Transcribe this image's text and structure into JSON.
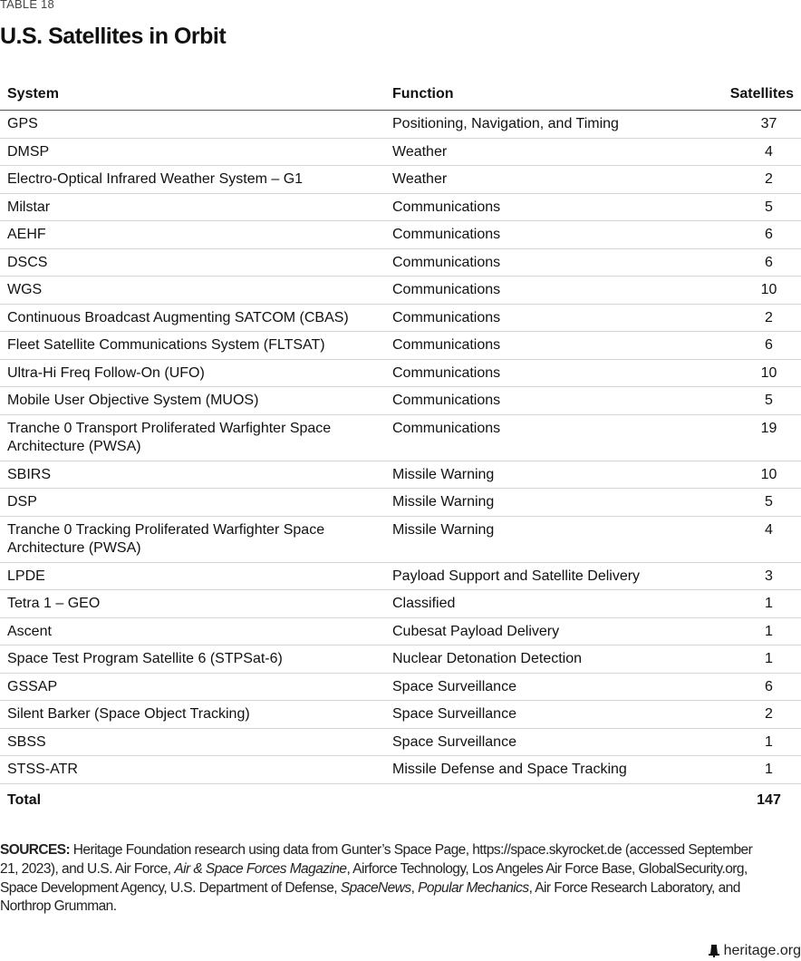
{
  "table_label": "TABLE 18",
  "title": "U.S. Satellites in Orbit",
  "columns": [
    "System",
    "Function",
    "Satellites"
  ],
  "rows": [
    {
      "system": "GPS",
      "function": "Positioning, Navigation, and Timing",
      "satellites": "37"
    },
    {
      "system": "DMSP",
      "function": "Weather",
      "satellites": "4"
    },
    {
      "system": "Electro-Optical Infrared Weather System – G1",
      "function": "Weather",
      "satellites": "2"
    },
    {
      "system": "Milstar",
      "function": "Communications",
      "satellites": "5"
    },
    {
      "system": "AEHF",
      "function": "Communications",
      "satellites": "6"
    },
    {
      "system": "DSCS",
      "function": "Communications",
      "satellites": "6"
    },
    {
      "system": "WGS",
      "function": "Communications",
      "satellites": "10"
    },
    {
      "system": "Continuous Broadcast Augmenting SATCOM (CBAS)",
      "function": "Communications",
      "satellites": "2"
    },
    {
      "system": "Fleet Satellite Communications System (FLTSAT)",
      "function": "Communications",
      "satellites": "6"
    },
    {
      "system": "Ultra-Hi Freq Follow-On (UFO)",
      "function": "Communications",
      "satellites": "10"
    },
    {
      "system": "Mobile User Objective System (MUOS)",
      "function": "Communications",
      "satellites": "5"
    },
    {
      "system": "Tranche 0 Transport Proliferated Warfighter Space Architecture (PWSA)",
      "function": "Communications",
      "satellites": "19"
    },
    {
      "system": "SBIRS",
      "function": "Missile Warning",
      "satellites": "10"
    },
    {
      "system": "DSP",
      "function": "Missile Warning",
      "satellites": "5"
    },
    {
      "system": "Tranche 0 Tracking Proliferated Warfighter Space Architecture (PWSA)",
      "function": "Missile Warning",
      "satellites": "4"
    },
    {
      "system": "LPDE",
      "function": "Payload Support and Satellite Delivery",
      "satellites": "3"
    },
    {
      "system": "Tetra 1 – GEO",
      "function": "Classified",
      "satellites": "1"
    },
    {
      "system": "Ascent",
      "function": "Cubesat Payload Delivery",
      "satellites": "1"
    },
    {
      "system": "Space Test Program Satellite 6 (STPSat-6)",
      "function": "Nuclear Detonation Detection",
      "satellites": "1"
    },
    {
      "system": "GSSAP",
      "function": "Space Surveillance",
      "satellites": "6"
    },
    {
      "system": "Silent Barker (Space Object Tracking)",
      "function": "Space Surveillance",
      "satellites": "2"
    },
    {
      "system": "SBSS",
      "function": "Space Surveillance",
      "satellites": "1"
    },
    {
      "system": "STSS-ATR",
      "function": "Missile Defense and Space Tracking",
      "satellites": "1"
    }
  ],
  "total": {
    "label": "Total",
    "satellites": "147"
  },
  "sources": {
    "label": "SOURCES:",
    "text1": " Heritage Foundation research using data from Gunter’s Space Page, https://space.skyrocket.de (accessed September 21, 2023), and U.S. Air Force, ",
    "italic1": "Air & Space Forces Magazine",
    "text2": ", Airforce Technology, Los Angeles Air Force Base, GlobalSecurity.org, Space Development Agency, U.S. Department of Defense, ",
    "italic2": "SpaceNews",
    "text3": ", ",
    "italic3": "Popular Mechanics",
    "text4": ", Air Force Research Laboratory, and Northrop Grumman."
  },
  "footer": {
    "site": "heritage.org",
    "icon": "liberty-bell-icon"
  }
}
